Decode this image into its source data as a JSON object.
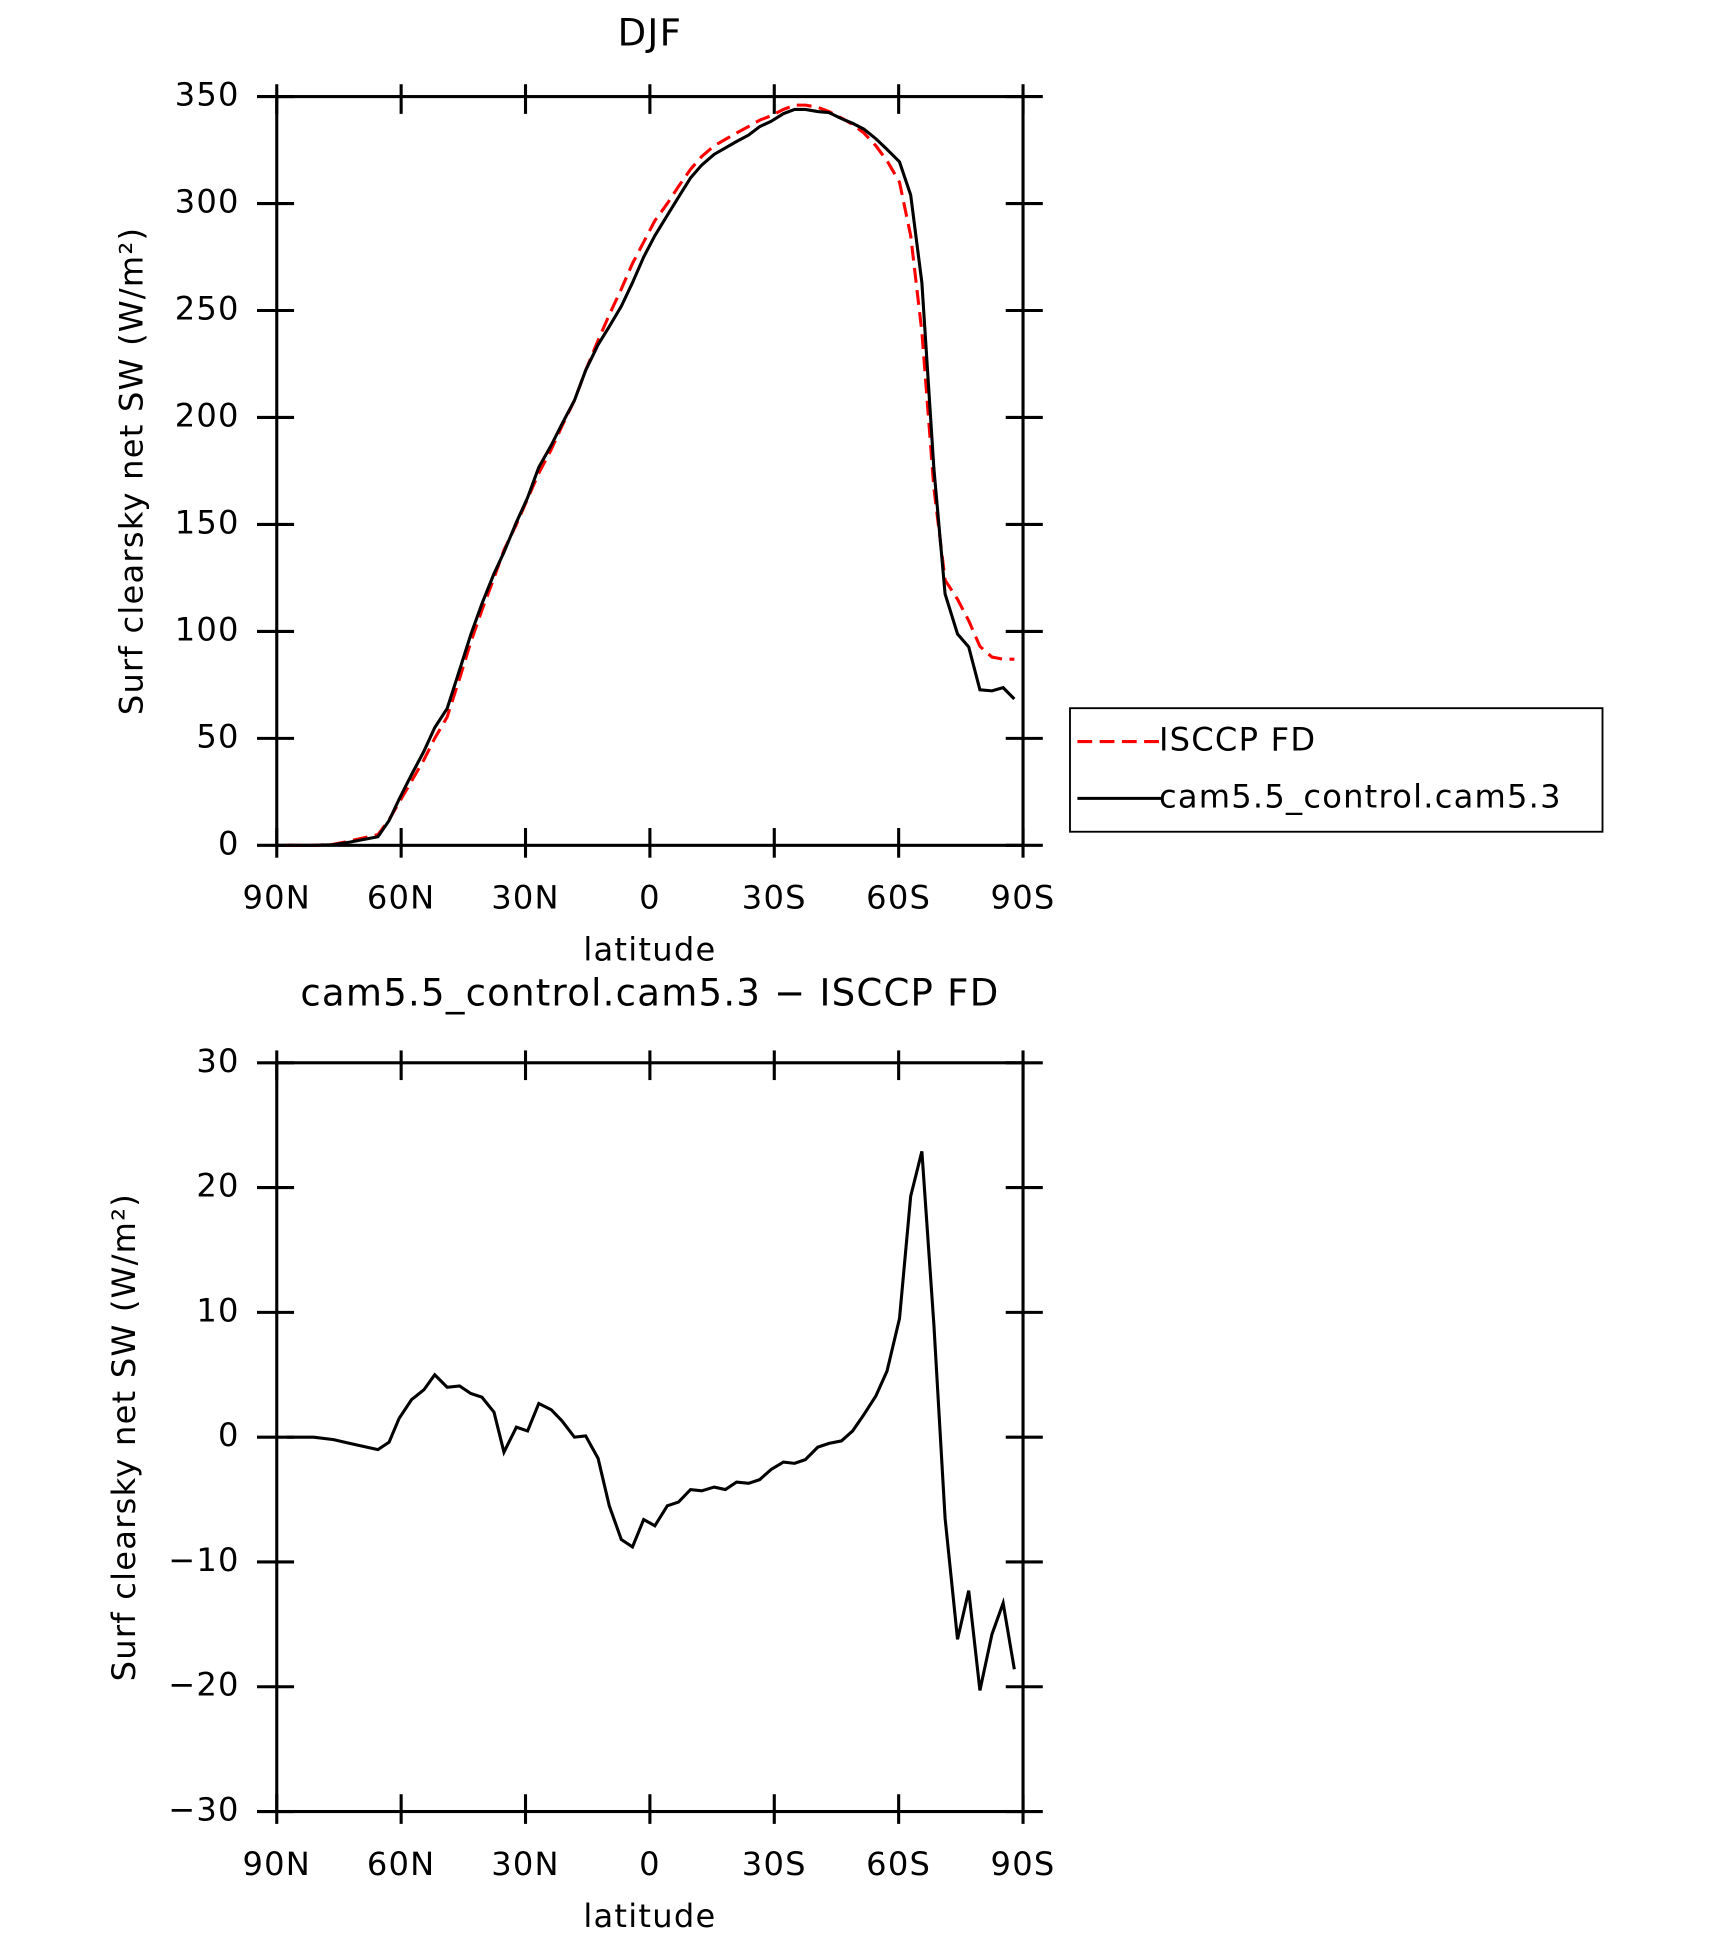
{
  "chart_data": [
    {
      "type": "line",
      "title": "DJF",
      "xlabel": "latitude",
      "ylabel": "Surf clearsky net SW (W/m²)",
      "x": [
        87.6,
        81.1,
        76.3,
        72.4,
        65.6,
        62.9,
        60.5,
        57.5,
        54.5,
        51.9,
        48.9,
        45.9,
        43.2,
        40.5,
        37.6,
        35.2,
        32.2,
        29.5,
        26.8,
        23.8,
        21.2,
        18.2,
        15.5,
        12.5,
        9.8,
        6.9,
        4.2,
        1.5,
        -1.2,
        -4.2,
        -6.9,
        -9.8,
        -12.5,
        -15.5,
        -18.2,
        -20.9,
        -23.8,
        -26.5,
        -29.2,
        -32.2,
        -34.9,
        -37.5,
        -40.5,
        -43.2,
        -46.2,
        -48.9,
        -51.6,
        -54.5,
        -57.2,
        -60.2,
        -62.9,
        -65.6,
        -68.5,
        -71.2,
        -74.2,
        -76.9,
        -79.6,
        -82.5,
        -85.2,
        -87.9
      ],
      "series": [
        {
          "name": "ISCCP FD",
          "color": "#ff0000",
          "style": "dashed",
          "values": [
            0,
            0,
            0.5,
            2,
            5,
            12,
            20,
            30,
            40,
            50,
            60,
            78,
            95,
            110,
            125,
            138,
            150,
            162,
            174,
            185,
            196,
            208,
            222,
            236,
            248,
            260,
            272,
            282,
            292,
            300,
            308,
            316,
            322,
            327,
            330,
            333,
            336,
            339,
            341,
            344,
            346,
            346,
            345,
            343,
            340,
            337,
            333,
            327,
            320,
            310,
            285,
            240,
            167,
            124,
            115,
            105,
            93,
            88,
            87,
            87
          ]
        },
        {
          "name": "cam5.5_control.cam5.3",
          "color": "#000000",
          "style": "solid",
          "values": [
            0,
            0,
            0.3,
            1.5,
            4,
            11.6,
            21.5,
            33,
            44,
            55,
            64,
            82,
            98.5,
            113,
            127,
            137,
            151,
            162.5,
            176.7,
            187,
            197,
            208,
            222,
            234,
            242.5,
            252,
            263,
            275,
            285,
            294.5,
            303,
            312,
            318,
            323,
            326,
            329,
            332,
            336,
            338.4,
            342,
            344,
            344,
            343,
            342.5,
            339.7,
            337.5,
            334.8,
            330.3,
            325.3,
            319.5,
            304,
            263,
            176,
            117.5,
            98.8,
            92.7,
            72.7,
            72.2,
            73.7,
            68.4
          ]
        }
      ],
      "xlim": [
        90,
        -90
      ],
      "xticks": [
        {
          "value": 90,
          "label": "90N"
        },
        {
          "value": 60,
          "label": "60N"
        },
        {
          "value": 30,
          "label": "30N"
        },
        0,
        {
          "value": -30,
          "label": "30S"
        },
        {
          "value": -60,
          "label": "60S"
        },
        {
          "value": -90,
          "label": "90S"
        }
      ],
      "ylim": [
        0,
        350
      ],
      "yticks": [
        0,
        50,
        100,
        150,
        200,
        250,
        300,
        350
      ],
      "legend": "right"
    },
    {
      "type": "line",
      "title": "cam5.5_control.cam5.3 − ISCCP FD",
      "xlabel": "latitude",
      "ylabel": "Surf clearsky net SW (W/m²)",
      "x": [
        87.6,
        81.1,
        76.3,
        72.4,
        65.6,
        62.9,
        60.5,
        57.5,
        54.5,
        51.9,
        48.9,
        45.9,
        43.2,
        40.5,
        37.6,
        35.2,
        32.2,
        29.5,
        26.8,
        23.8,
        21.2,
        18.2,
        15.5,
        12.5,
        9.8,
        6.9,
        4.2,
        1.5,
        -1.2,
        -4.2,
        -6.9,
        -9.8,
        -12.5,
        -15.5,
        -18.2,
        -20.9,
        -23.8,
        -26.5,
        -29.2,
        -32.2,
        -34.9,
        -37.5,
        -40.5,
        -43.2,
        -46.2,
        -48.9,
        -51.6,
        -54.5,
        -57.2,
        -60.2,
        -62.9,
        -65.6,
        -68.5,
        -71.2,
        -74.2,
        -76.9,
        -79.6,
        -82.5,
        -85.2,
        -87.9
      ],
      "series": [
        {
          "color": "#000000",
          "style": "solid",
          "values": [
            0,
            0,
            -0.2,
            -0.5,
            -1,
            -0.4,
            1.5,
            3,
            3.8,
            5,
            4,
            4.1,
            3.5,
            3.2,
            2,
            -1.2,
            0.8,
            0.5,
            2.7,
            2.2,
            1.3,
            0,
            0.1,
            -1.7,
            -5.5,
            -8.2,
            -8.8,
            -6.6,
            -7.1,
            -5.5,
            -5.2,
            -4.2,
            -4.3,
            -4,
            -4.2,
            -3.6,
            -3.7,
            -3.4,
            -2.6,
            -2,
            -2.1,
            -1.8,
            -0.8,
            -0.5,
            -0.3,
            0.5,
            1.8,
            3.3,
            5.3,
            9.5,
            19.3,
            22.9,
            9,
            -6.5,
            -16.2,
            -12.3,
            -20.3,
            -15.8,
            -13.3,
            -18.6
          ]
        }
      ],
      "xlim": [
        90,
        -90
      ],
      "xticks": [
        {
          "value": 90,
          "label": "90N"
        },
        {
          "value": 60,
          "label": "60N"
        },
        {
          "value": 30,
          "label": "30N"
        },
        0,
        {
          "value": -30,
          "label": "30S"
        },
        {
          "value": -60,
          "label": "60S"
        },
        {
          "value": -90,
          "label": "90S"
        }
      ],
      "ylim": [
        -30,
        30
      ],
      "yticks": [
        {
          "value": -30,
          "label": "−30"
        },
        {
          "value": -20,
          "label": "−20"
        },
        {
          "value": -10,
          "label": "−10"
        },
        0,
        10,
        20,
        30
      ]
    }
  ]
}
